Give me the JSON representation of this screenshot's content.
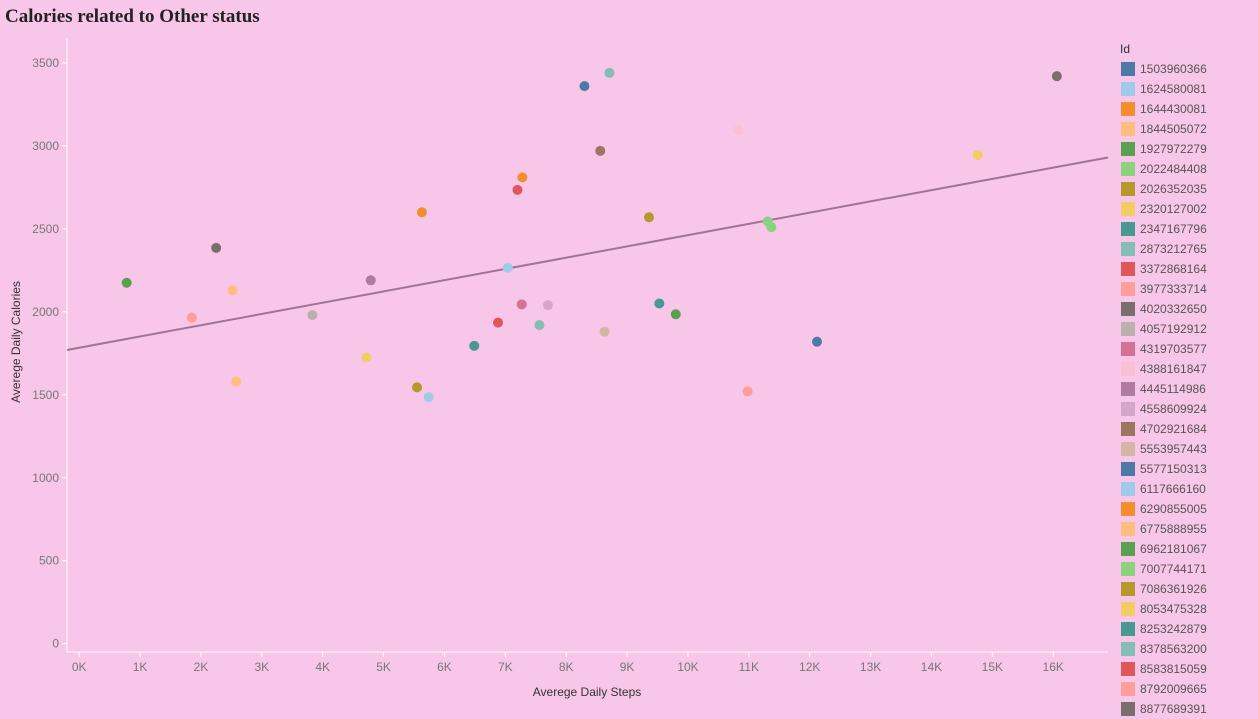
{
  "chart_data": {
    "type": "scatter",
    "title": "Calories related to Other status",
    "xlabel": "Averege Daily Steps",
    "ylabel": "Averege Daily Calories",
    "xlim": [
      -200,
      16900
    ],
    "ylim": [
      -50,
      3650
    ],
    "x_ticks": [
      0,
      1000,
      2000,
      3000,
      4000,
      5000,
      6000,
      7000,
      8000,
      9000,
      10000,
      11000,
      12000,
      13000,
      14000,
      15000,
      16000
    ],
    "x_tick_labels": [
      "0K",
      "1K",
      "2K",
      "3K",
      "4K",
      "5K",
      "6K",
      "7K",
      "8K",
      "9K",
      "10K",
      "11K",
      "12K",
      "13K",
      "14K",
      "15K",
      "16K"
    ],
    "y_ticks": [
      0,
      500,
      1000,
      1500,
      2000,
      2500,
      3000,
      3500
    ],
    "y_tick_labels": [
      "0",
      "500",
      "1000",
      "1500",
      "2000",
      "2500",
      "3000",
      "3500"
    ],
    "grid": false,
    "trend_line": {
      "x": [
        -200,
        16900
      ],
      "y": [
        1770,
        2930
      ],
      "color": "#9d7592"
    },
    "legend": {
      "title": "Id",
      "placement": "right"
    },
    "series": [
      {
        "name": "1503960366",
        "color": "#4e79a7",
        "x": [
          12120
        ],
        "y": [
          1820
        ]
      },
      {
        "name": "1624580081",
        "color": "#a0cbe8",
        "x": [
          5740
        ],
        "y": [
          1485
        ]
      },
      {
        "name": "1644430081",
        "color": "#f28e2b",
        "x": [
          7280
        ],
        "y": [
          2810
        ]
      },
      {
        "name": "1844505072",
        "color": "#ffbe7d",
        "x": [
          2580
        ],
        "y": [
          1580
        ]
      },
      {
        "name": "1927972279",
        "color": "#59a14f",
        "x": [
          9800
        ],
        "y": [
          1985
        ]
      },
      {
        "name": "2022484408",
        "color": "#8cd17d",
        "x": [
          11370
        ],
        "y": [
          2510
        ]
      },
      {
        "name": "2026352035",
        "color": "#b6992d",
        "x": [
          9360
        ],
        "y": [
          2570
        ]
      },
      {
        "name": "2320127002",
        "color": "#f1ce63",
        "x": [
          4720
        ],
        "y": [
          1725
        ]
      },
      {
        "name": "2347167796",
        "color": "#499894",
        "x": [
          9530
        ],
        "y": [
          2050
        ]
      },
      {
        "name": "2873212765",
        "color": "#86bcb6",
        "x": [
          7560
        ],
        "y": [
          1920
        ]
      },
      {
        "name": "3372868164",
        "color": "#e15759",
        "x": [
          6880
        ],
        "y": [
          1935
        ]
      },
      {
        "name": "3977333714",
        "color": "#ff9d9a",
        "x": [
          1850
        ],
        "y": [
          1965
        ]
      },
      {
        "name": "4020332650",
        "color": "#79706e",
        "x": [
          2250
        ],
        "y": [
          2385
        ]
      },
      {
        "name": "4057192912",
        "color": "#bab0ac",
        "x": [
          3830
        ],
        "y": [
          1980
        ]
      },
      {
        "name": "4319703577",
        "color": "#d37295",
        "x": [
          7270
        ],
        "y": [
          2045
        ]
      },
      {
        "name": "4388161847",
        "color": "#fabfd2",
        "x": [
          10830
        ],
        "y": [
          3095
        ]
      },
      {
        "name": "4445114986",
        "color": "#b07aa1",
        "x": [
          4790
        ],
        "y": [
          2190
        ]
      },
      {
        "name": "4558609924",
        "color": "#d4a6c8",
        "x": [
          7700
        ],
        "y": [
          2040
        ]
      },
      {
        "name": "4702921684",
        "color": "#9d7660",
        "x": [
          8560
        ],
        "y": [
          2970
        ]
      },
      {
        "name": "5553957443",
        "color": "#d7b5a6",
        "x": [
          8630
        ],
        "y": [
          1880
        ]
      },
      {
        "name": "5577150313",
        "color": "#4e79a7",
        "x": [
          8300
        ],
        "y": [
          3360
        ]
      },
      {
        "name": "6117666160",
        "color": "#a0cbe8",
        "x": [
          7040
        ],
        "y": [
          2265
        ]
      },
      {
        "name": "6290855005",
        "color": "#f28e2b",
        "x": [
          5630
        ],
        "y": [
          2600
        ]
      },
      {
        "name": "6775888955",
        "color": "#ffbe7d",
        "x": [
          2520
        ],
        "y": [
          2130
        ]
      },
      {
        "name": "6962181067",
        "color": "#59a14f",
        "x": [
          780
        ],
        "y": [
          2175
        ]
      },
      {
        "name": "7007744171",
        "color": "#8cd17d",
        "x": [
          11310
        ],
        "y": [
          2545
        ]
      },
      {
        "name": "7086361926",
        "color": "#b6992d",
        "x": [
          5550
        ],
        "y": [
          1545
        ]
      },
      {
        "name": "8053475328",
        "color": "#f1ce63",
        "x": [
          14760
        ],
        "y": [
          2945
        ]
      },
      {
        "name": "8253242879",
        "color": "#499894",
        "x": [
          6490
        ],
        "y": [
          1795
        ]
      },
      {
        "name": "8378563200",
        "color": "#86bcb6",
        "x": [
          8710
        ],
        "y": [
          3440
        ]
      },
      {
        "name": "8583815059",
        "color": "#e15759",
        "x": [
          7200
        ],
        "y": [
          2735
        ]
      },
      {
        "name": "8792009665",
        "color": "#ff9d9a",
        "x": [
          10980
        ],
        "y": [
          1520
        ]
      },
      {
        "name": "8877689391",
        "color": "#79706e",
        "x": [
          16060
        ],
        "y": [
          3420
        ]
      }
    ]
  }
}
